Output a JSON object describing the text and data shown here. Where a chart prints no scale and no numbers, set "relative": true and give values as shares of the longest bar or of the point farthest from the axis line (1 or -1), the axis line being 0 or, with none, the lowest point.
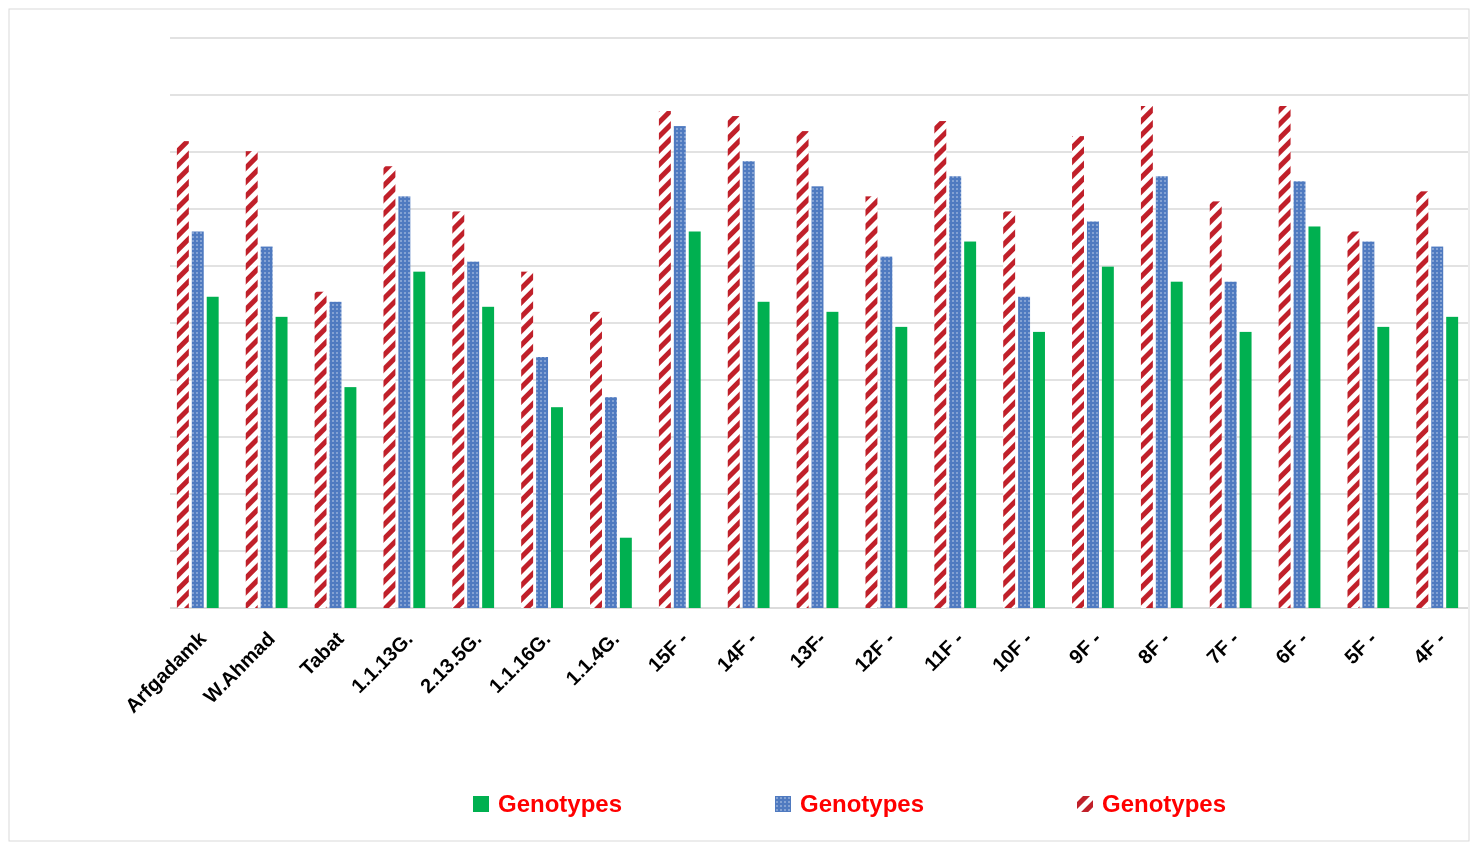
{
  "chart_data": {
    "type": "bar",
    "relative": true,
    "grid": "y",
    "legend": "bottom",
    "categories": [
      "Arfgadamk",
      "W.Ahmad",
      "Tabat",
      "1.1.13G.",
      "2.13.5G.",
      "1.1.16G.",
      "1.1.4G.",
      "15F -",
      "14F -",
      "13F-",
      "12F -",
      "11F -",
      "10F -",
      "9F -",
      "8F -",
      "7F -",
      "6F -",
      "5F -",
      "4F -"
    ],
    "series": [
      {
        "name": "Genotypes",
        "color": "#c0202a",
        "values": [
          0.93,
          0.91,
          0.63,
          0.88,
          0.79,
          0.67,
          0.59,
          0.99,
          0.98,
          0.95,
          0.82,
          0.97,
          0.79,
          0.94,
          1.0,
          0.81,
          1.0,
          0.75,
          0.83
        ]
      },
      {
        "name": "Genotypes",
        "color": "#4f7ac0",
        "values": [
          0.75,
          0.72,
          0.61,
          0.82,
          0.69,
          0.5,
          0.42,
          0.96,
          0.89,
          0.84,
          0.7,
          0.86,
          0.62,
          0.77,
          0.86,
          0.65,
          0.85,
          0.73,
          0.72
        ]
      },
      {
        "name": "Genotypes",
        "color": "#00b050",
        "values": [
          0.62,
          0.58,
          0.44,
          0.67,
          0.6,
          0.4,
          0.14,
          0.75,
          0.61,
          0.59,
          0.56,
          0.73,
          0.55,
          0.68,
          0.65,
          0.55,
          0.76,
          0.56,
          0.58
        ]
      }
    ]
  }
}
